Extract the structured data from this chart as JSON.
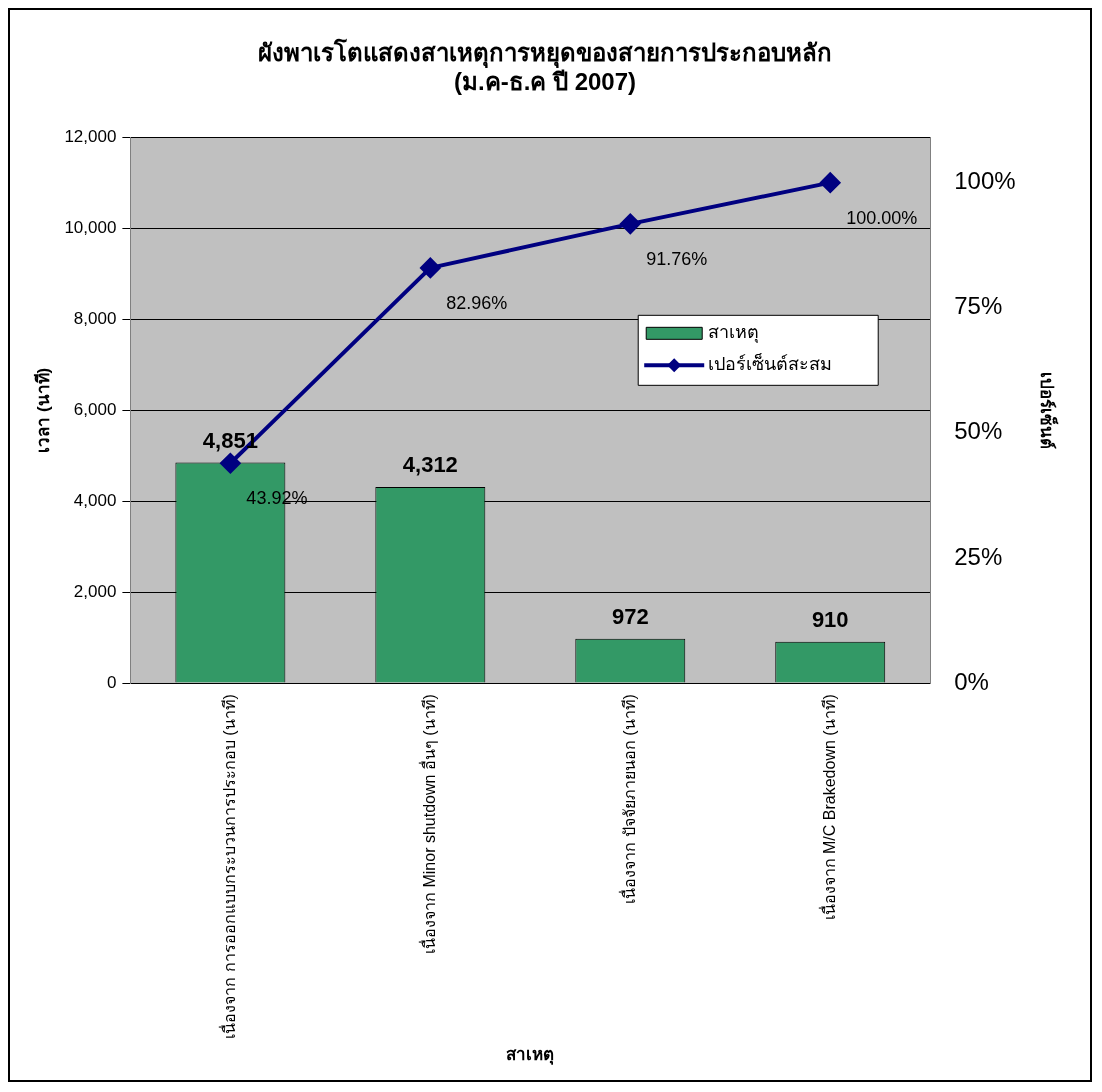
{
  "chart_data": {
    "type": "bar",
    "title": "ผังพาเรโตแสดงสาเหตุการหยุดของสายการประกอบหลัก\n(ม.ค-ธ.ค ปี 2007)",
    "xlabel": "สาเหตุ",
    "ylabel": "เวลา (นาที)",
    "y2label": "เปอร์เซ็นต์",
    "categories": [
      "เนื่องจาก การออกแบบกระบวนการประกอบ (นาที)",
      "เนื่องจาก Minor shutdown อื่นๆ (นาที)",
      "เนื่องจาก ปัจจัยภายนอก (นาที)",
      "เนื่องจาก M/C Brakedown (นาที)"
    ],
    "series": [
      {
        "name": "สาเหตุ",
        "color": "#339966",
        "values": [
          4851,
          4312,
          972,
          910
        ],
        "value_labels": [
          "4,851",
          "4,312",
          "972",
          "910"
        ]
      },
      {
        "name": "เปอร์เซ็นต์สะสม",
        "type": "line",
        "axis": "y2",
        "color": "#000080",
        "values": [
          43.92,
          82.96,
          91.76,
          100
        ],
        "value_labels": [
          "43.92%",
          "82.96%",
          "91.76%",
          "100.00%"
        ]
      }
    ],
    "ylim": [
      0,
      12000
    ],
    "yticks": [
      {
        "value": 0,
        "label": "0"
      },
      {
        "value": 2000,
        "label": "2,000"
      },
      {
        "value": 4000,
        "label": "4,000"
      },
      {
        "value": 6000,
        "label": "6,000"
      },
      {
        "value": 8000,
        "label": "8,000"
      },
      {
        "value": 10000,
        "label": "10,000"
      },
      {
        "value": 12000,
        "label": "12,000"
      }
    ],
    "y2lim": [
      0,
      109
    ],
    "y2ticks": [
      {
        "value": 0,
        "label": "0%"
      },
      {
        "value": 25,
        "label": "25%"
      },
      {
        "value": 50,
        "label": "50%"
      },
      {
        "value": 75,
        "label": "75%"
      },
      {
        "value": 100,
        "label": "100%"
      }
    ],
    "grid": "y",
    "legend": "right",
    "marker": "diamond",
    "line_style": "solid"
  }
}
